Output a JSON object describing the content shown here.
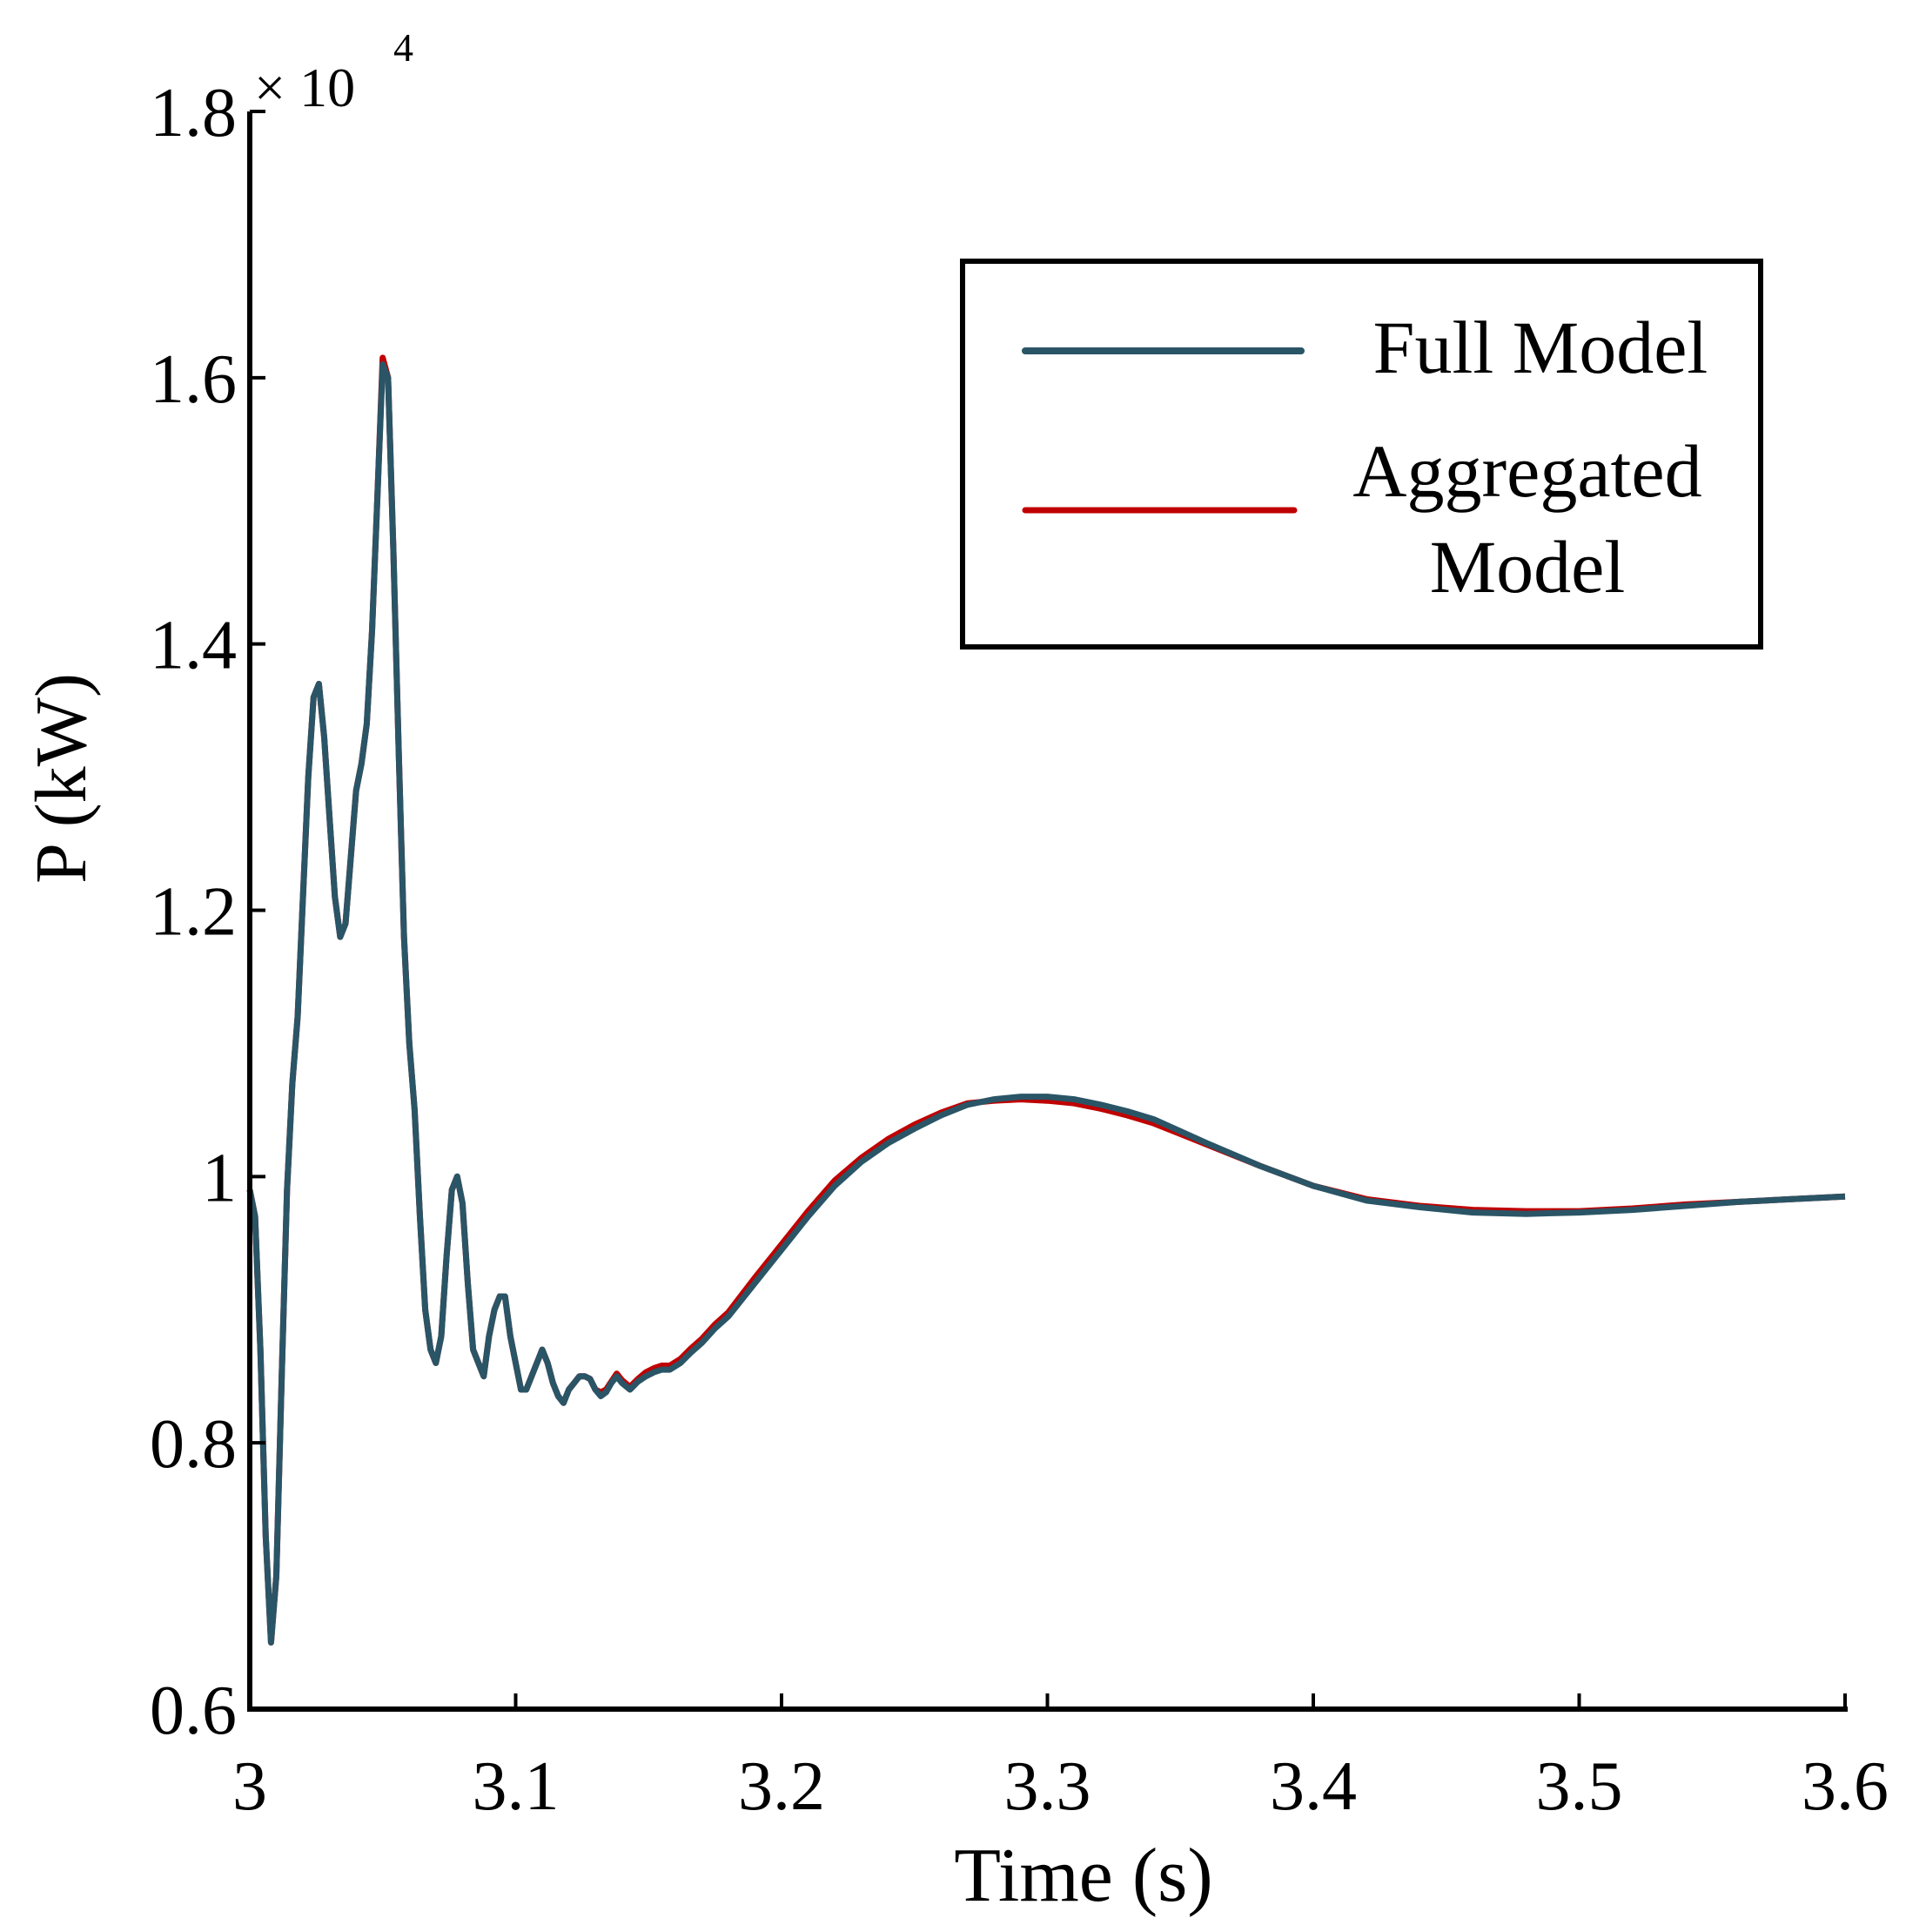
{
  "chart_data": {
    "type": "line",
    "title": "",
    "xlabel": "Time (s)",
    "ylabel": "P (kW)",
    "xlim": [
      3.0,
      3.6
    ],
    "ylim": [
      0.6,
      1.8
    ],
    "xticks": [
      "3",
      "3.1",
      "3.2",
      "3.3",
      "3.4",
      "3.5",
      "3.6"
    ],
    "yticks": [
      "0.6",
      "0.8",
      "1",
      "1.2",
      "1.4",
      "1.6",
      "1.8"
    ],
    "y_multiplier_base": "× 10",
    "y_multiplier_exponent": "4",
    "grid": false,
    "legend_position": "top-right",
    "series": [
      {
        "name": "Full Model",
        "color": "#2a5566",
        "x": [
          3.0,
          3.002,
          3.004,
          3.006,
          3.008,
          3.01,
          3.012,
          3.014,
          3.016,
          3.018,
          3.02,
          3.022,
          3.024,
          3.026,
          3.028,
          3.03,
          3.032,
          3.034,
          3.036,
          3.038,
          3.04,
          3.042,
          3.044,
          3.046,
          3.048,
          3.05,
          3.052,
          3.054,
          3.056,
          3.058,
          3.06,
          3.062,
          3.064,
          3.066,
          3.068,
          3.07,
          3.072,
          3.074,
          3.076,
          3.078,
          3.08,
          3.082,
          3.084,
          3.086,
          3.088,
          3.09,
          3.092,
          3.094,
          3.096,
          3.098,
          3.1,
          3.102,
          3.104,
          3.106,
          3.108,
          3.11,
          3.112,
          3.114,
          3.116,
          3.118,
          3.12,
          3.122,
          3.124,
          3.126,
          3.128,
          3.13,
          3.132,
          3.134,
          3.136,
          3.138,
          3.14,
          3.143,
          3.146,
          3.149,
          3.152,
          3.155,
          3.158,
          3.162,
          3.166,
          3.17,
          3.175,
          3.18,
          3.19,
          3.2,
          3.21,
          3.22,
          3.23,
          3.24,
          3.25,
          3.26,
          3.27,
          3.28,
          3.29,
          3.3,
          3.31,
          3.32,
          3.33,
          3.34,
          3.35,
          3.36,
          3.38,
          3.4,
          3.42,
          3.44,
          3.46,
          3.48,
          3.5,
          3.52,
          3.54,
          3.56,
          3.58,
          3.6
        ],
        "values": [
          0.99,
          0.97,
          0.87,
          0.73,
          0.65,
          0.7,
          0.85,
          0.99,
          1.07,
          1.12,
          1.21,
          1.3,
          1.36,
          1.37,
          1.33,
          1.27,
          1.21,
          1.18,
          1.19,
          1.24,
          1.29,
          1.31,
          1.34,
          1.41,
          1.51,
          1.61,
          1.6,
          1.47,
          1.32,
          1.18,
          1.1,
          1.05,
          0.97,
          0.9,
          0.87,
          0.86,
          0.88,
          0.94,
          0.99,
          1.0,
          0.98,
          0.92,
          0.87,
          0.86,
          0.85,
          0.88,
          0.9,
          0.91,
          0.91,
          0.88,
          0.86,
          0.84,
          0.84,
          0.85,
          0.86,
          0.87,
          0.86,
          0.845,
          0.835,
          0.83,
          0.84,
          0.845,
          0.85,
          0.85,
          0.848,
          0.84,
          0.835,
          0.838,
          0.845,
          0.85,
          0.845,
          0.84,
          0.846,
          0.85,
          0.853,
          0.855,
          0.855,
          0.86,
          0.868,
          0.875,
          0.886,
          0.895,
          0.92,
          0.945,
          0.97,
          0.993,
          1.011,
          1.025,
          1.036,
          1.046,
          1.054,
          1.058,
          1.06,
          1.06,
          1.058,
          1.054,
          1.049,
          1.043,
          1.034,
          1.025,
          1.008,
          0.993,
          0.982,
          0.977,
          0.973,
          0.972,
          0.973,
          0.975,
          0.978,
          0.981,
          0.983,
          0.985
        ]
      },
      {
        "name": "Aggregated Model",
        "color": "#c00000",
        "x": [
          3.0,
          3.002,
          3.004,
          3.006,
          3.008,
          3.01,
          3.012,
          3.014,
          3.016,
          3.018,
          3.02,
          3.022,
          3.024,
          3.026,
          3.028,
          3.03,
          3.032,
          3.034,
          3.036,
          3.038,
          3.04,
          3.042,
          3.044,
          3.046,
          3.048,
          3.05,
          3.052,
          3.054,
          3.056,
          3.058,
          3.06,
          3.062,
          3.064,
          3.066,
          3.068,
          3.07,
          3.072,
          3.074,
          3.076,
          3.078,
          3.08,
          3.082,
          3.084,
          3.086,
          3.088,
          3.09,
          3.092,
          3.094,
          3.096,
          3.098,
          3.1,
          3.102,
          3.104,
          3.106,
          3.108,
          3.11,
          3.112,
          3.114,
          3.116,
          3.118,
          3.12,
          3.122,
          3.124,
          3.126,
          3.128,
          3.13,
          3.132,
          3.134,
          3.136,
          3.138,
          3.14,
          3.143,
          3.146,
          3.149,
          3.152,
          3.155,
          3.158,
          3.162,
          3.166,
          3.17,
          3.175,
          3.18,
          3.19,
          3.2,
          3.21,
          3.22,
          3.23,
          3.24,
          3.25,
          3.26,
          3.27,
          3.28,
          3.29,
          3.3,
          3.31,
          3.32,
          3.33,
          3.34,
          3.35,
          3.36,
          3.38,
          3.4,
          3.42,
          3.44,
          3.46,
          3.48,
          3.5,
          3.52,
          3.54,
          3.56,
          3.58,
          3.6
        ],
        "values": [
          0.99,
          0.97,
          0.87,
          0.73,
          0.65,
          0.7,
          0.85,
          0.99,
          1.07,
          1.12,
          1.21,
          1.3,
          1.36,
          1.37,
          1.33,
          1.27,
          1.21,
          1.18,
          1.19,
          1.24,
          1.29,
          1.31,
          1.34,
          1.41,
          1.51,
          1.615,
          1.6,
          1.47,
          1.32,
          1.18,
          1.1,
          1.05,
          0.97,
          0.9,
          0.87,
          0.86,
          0.88,
          0.94,
          0.99,
          1.0,
          0.98,
          0.92,
          0.87,
          0.86,
          0.85,
          0.88,
          0.9,
          0.91,
          0.91,
          0.88,
          0.86,
          0.84,
          0.84,
          0.85,
          0.86,
          0.87,
          0.86,
          0.845,
          0.835,
          0.83,
          0.84,
          0.845,
          0.85,
          0.85,
          0.848,
          0.84,
          0.838,
          0.84,
          0.846,
          0.852,
          0.847,
          0.842,
          0.848,
          0.853,
          0.856,
          0.858,
          0.858,
          0.863,
          0.871,
          0.878,
          0.889,
          0.898,
          0.924,
          0.949,
          0.974,
          0.997,
          1.014,
          1.028,
          1.039,
          1.048,
          1.055,
          1.057,
          1.058,
          1.057,
          1.055,
          1.051,
          1.046,
          1.04,
          1.032,
          1.024,
          1.008,
          0.993,
          0.983,
          0.978,
          0.975,
          0.974,
          0.974,
          0.976,
          0.979,
          0.981,
          0.983,
          0.985
        ]
      }
    ]
  },
  "legend": {
    "entries": [
      {
        "label_lines": [
          "Full Model"
        ],
        "color": "#2a5566"
      },
      {
        "label_lines": [
          "Aggregated",
          "Model"
        ],
        "color": "#c00000"
      }
    ]
  }
}
